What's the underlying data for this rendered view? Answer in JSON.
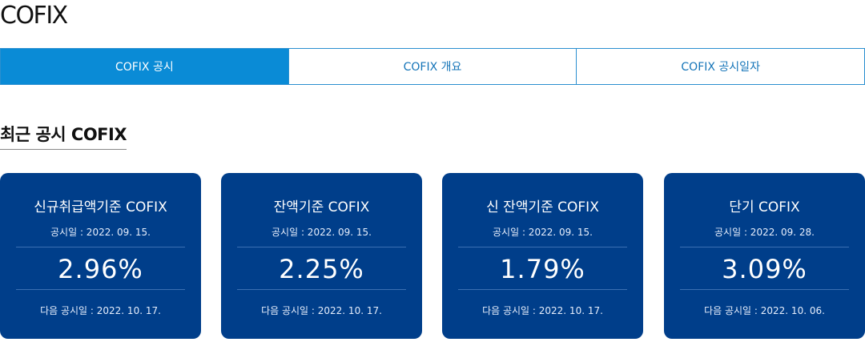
{
  "page": {
    "title": "COFIX"
  },
  "tabs": [
    {
      "label": "COFIX 공시",
      "active": true
    },
    {
      "label": "COFIX 개요",
      "active": false
    },
    {
      "label": "COFIX 공시일자",
      "active": false
    }
  ],
  "section": {
    "title": "최근 공시 COFIX"
  },
  "cards": [
    {
      "title": "신규취급액기준 COFIX",
      "date": "공시일 : 2022. 09. 15.",
      "rate": "2.96%",
      "next": "다음 공시일 : 2022. 10. 17."
    },
    {
      "title": "잔액기준 COFIX",
      "date": "공시일 : 2022. 09. 15.",
      "rate": "2.25%",
      "next": "다음 공시일 : 2022. 10. 17."
    },
    {
      "title": "신 잔액기준 COFIX",
      "date": "공시일 : 2022. 09. 15.",
      "rate": "1.79%",
      "next": "다음 공시일 : 2022. 10. 17."
    },
    {
      "title": "단기 COFIX",
      "date": "공시일 : 2022. 09. 28.",
      "rate": "3.09%",
      "next": "다음 공시일 : 2022. 10. 06."
    }
  ],
  "colors": {
    "accent": "#0a8bd6",
    "card_bg": "#003e8a"
  }
}
